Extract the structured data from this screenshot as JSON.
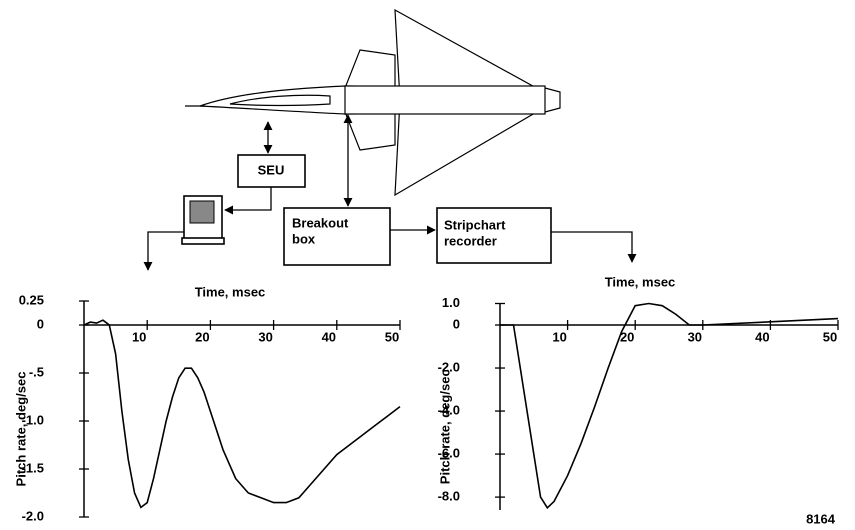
{
  "diagram": {
    "seu": "SEU",
    "breakout": [
      "Breakout",
      "box"
    ],
    "recorder": [
      "Stripchart",
      "recorder"
    ],
    "figure_number": "8164"
  },
  "chart_data": [
    {
      "type": "line",
      "x_label": "Time, msec",
      "y_label": "Pitch rate, deg/sec",
      "xlim": [
        0,
        50
      ],
      "xticks": [
        10,
        20,
        30,
        40,
        50
      ],
      "ylim": [
        -2,
        0.25
      ],
      "yticks": [
        0.25,
        0,
        {
          "value": -0.5,
          "label": "-.5"
        },
        {
          "value": -1,
          "label": "-1.0"
        },
        -1.5,
        {
          "value": -2,
          "label": "-2.0"
        }
      ],
      "series": [
        {
          "color": "#000000",
          "x": [
            0,
            1,
            2,
            3,
            4,
            5,
            6,
            7,
            8,
            9,
            10,
            11,
            12,
            13,
            14,
            15,
            16,
            17,
            18,
            19,
            20,
            22,
            24,
            26,
            28,
            30,
            32,
            34,
            36,
            38,
            40,
            42,
            44,
            46,
            48,
            50
          ],
          "values": [
            0,
            0.03,
            0.02,
            0.05,
            0,
            -0.3,
            -0.9,
            -1.4,
            -1.75,
            -1.9,
            -1.85,
            -1.6,
            -1.3,
            -1.0,
            -0.75,
            -0.55,
            -0.45,
            -0.45,
            -0.55,
            -0.7,
            -0.9,
            -1.3,
            -1.6,
            -1.75,
            -1.8,
            -1.85,
            -1.85,
            -1.8,
            -1.65,
            -1.5,
            -1.35,
            -1.25,
            -1.15,
            -1.05,
            -0.95,
            -0.85
          ]
        }
      ]
    },
    {
      "type": "line",
      "x_label": "Time, msec",
      "y_label": "Pitch rate, deg/sec",
      "xlim": [
        0,
        50
      ],
      "xticks": [
        10,
        20,
        30,
        40,
        50
      ],
      "ylim": [
        -8.6,
        1
      ],
      "yticks": [
        {
          "value": 1,
          "label": "1.0"
        },
        0,
        {
          "value": -2,
          "label": "-2.0"
        },
        {
          "value": -4,
          "label": "-4.0"
        },
        {
          "value": -6,
          "label": "-6.0"
        },
        {
          "value": -8,
          "label": "-8.0"
        }
      ],
      "series": [
        {
          "color": "#000000",
          "x": [
            0,
            2,
            3,
            5,
            6,
            7,
            8,
            10,
            12,
            14,
            16,
            18,
            20,
            22,
            24,
            26,
            28,
            30,
            40,
            50
          ],
          "values": [
            0,
            0,
            -2,
            -6,
            -8,
            -8.5,
            -8.2,
            -7,
            -5.5,
            -3.8,
            -2,
            -0.3,
            0.9,
            1.0,
            0.9,
            0.5,
            0,
            0,
            0.15,
            0.3
          ]
        }
      ]
    }
  ]
}
